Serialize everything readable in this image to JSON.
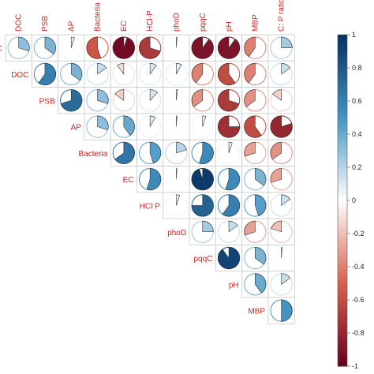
{
  "chart_data": {
    "type": "heatmap",
    "style": "pie correlogram (upper triangle)",
    "column_labels": [
      "DOC",
      "PSB",
      "AP",
      "Bacteria",
      "EC",
      "HCl-P",
      "phoD",
      "pqqC",
      "pH",
      "MBP",
      "C: P ratio"
    ],
    "row_labels": [
      "C",
      "DOC",
      "PSB",
      "AP",
      "Bacteria",
      "EC",
      "HCl P",
      "phoD",
      "pqqC",
      "pH",
      "MBP"
    ],
    "matrix": [
      [
        0.3,
        0.35,
        0.05,
        -0.55,
        -0.95,
        -0.7,
        0.01,
        -0.9,
        -0.9,
        -0.4,
        0.25
      ],
      [
        null,
        0.6,
        0.35,
        0.15,
        -0.1,
        0.1,
        0.08,
        -0.4,
        -0.6,
        -0.4,
        0.15
      ],
      [
        null,
        null,
        0.7,
        0.3,
        -0.15,
        0.12,
        0.02,
        -0.35,
        -0.7,
        -0.35,
        -0.15
      ],
      [
        null,
        null,
        null,
        0.3,
        0.4,
        0.08,
        0.01,
        0.05,
        -0.75,
        -0.6,
        -0.8
      ],
      [
        null,
        null,
        null,
        null,
        0.65,
        0.45,
        0.2,
        0.55,
        0.05,
        -0.3,
        -0.35
      ],
      [
        null,
        null,
        null,
        null,
        null,
        0.55,
        0.01,
        0.95,
        0.55,
        0.35,
        -0.3
      ],
      [
        null,
        null,
        null,
        null,
        null,
        null,
        0.05,
        0.75,
        0.6,
        0.45,
        0.15
      ],
      [
        null,
        null,
        null,
        null,
        null,
        null,
        null,
        0.25,
        0.15,
        -0.3,
        -0.2
      ],
      [
        null,
        null,
        null,
        null,
        null,
        null,
        null,
        null,
        0.9,
        0.35,
        0.01
      ],
      [
        null,
        null,
        null,
        null,
        null,
        null,
        null,
        null,
        null,
        0.4,
        0.15
      ],
      [
        null,
        null,
        null,
        null,
        null,
        null,
        null,
        null,
        null,
        null,
        0.5
      ]
    ],
    "colorbar": {
      "range": [
        -1,
        1
      ],
      "ticks": [
        "1",
        "0.8",
        "0.6",
        "0.4",
        "0.2",
        "0",
        "-0.2",
        "-0.4",
        "-0.6",
        "-0.8",
        "-1"
      ],
      "positive_color": "#053061",
      "neutral_color": "#ffffff",
      "negative_color": "#67001f"
    },
    "grid": true,
    "legend_placement": "right"
  }
}
